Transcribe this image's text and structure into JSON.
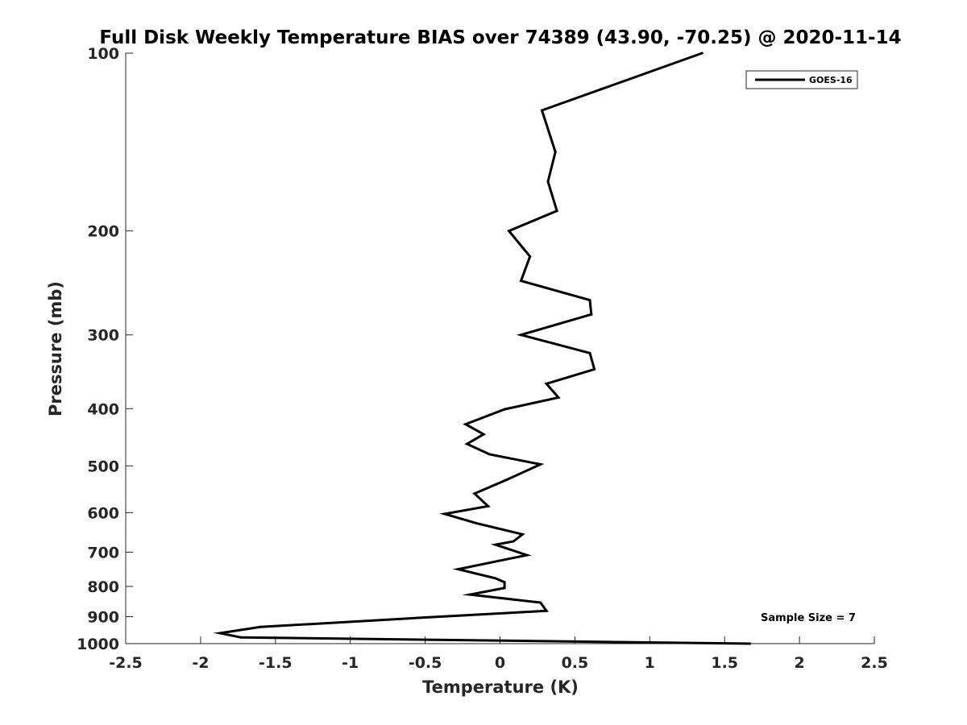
{
  "chart_data": {
    "type": "line",
    "title": "Full Disk Weekly Temperature BIAS over 74389 (43.90, -70.25) @ 2020-11-14",
    "xlabel": "Temperature (K)",
    "ylabel": "Pressure (mb)",
    "xlim": [
      -2.5,
      2.5
    ],
    "ylim": [
      100,
      1000
    ],
    "y_scale": "log",
    "y_reversed": true,
    "x_ticks": [
      "-2.5",
      "-2",
      "-1.5",
      "-1",
      "-0.5",
      "0",
      "0.5",
      "1",
      "1.5",
      "2",
      "2.5"
    ],
    "y_ticks": [
      "100",
      "200",
      "300",
      "400",
      "500",
      "600",
      "700",
      "800",
      "900",
      "1000"
    ],
    "grid": false,
    "legend_position": "top-right",
    "series": [
      {
        "name": "GOES-16",
        "color": "#000000",
        "points": [
          {
            "x": 1.35,
            "y": 100
          },
          {
            "x": 0.28,
            "y": 125
          },
          {
            "x": 0.37,
            "y": 147
          },
          {
            "x": 0.32,
            "y": 165
          },
          {
            "x": 0.38,
            "y": 185
          },
          {
            "x": 0.06,
            "y": 200
          },
          {
            "x": 0.2,
            "y": 221
          },
          {
            "x": 0.14,
            "y": 243
          },
          {
            "x": 0.6,
            "y": 262
          },
          {
            "x": 0.61,
            "y": 277
          },
          {
            "x": 0.14,
            "y": 300
          },
          {
            "x": 0.6,
            "y": 322
          },
          {
            "x": 0.63,
            "y": 343
          },
          {
            "x": 0.31,
            "y": 363
          },
          {
            "x": 0.39,
            "y": 383
          },
          {
            "x": 0.03,
            "y": 401
          },
          {
            "x": -0.23,
            "y": 425
          },
          {
            "x": -0.11,
            "y": 442
          },
          {
            "x": -0.22,
            "y": 459
          },
          {
            "x": -0.07,
            "y": 478
          },
          {
            "x": 0.27,
            "y": 497
          },
          {
            "x": 0.05,
            "y": 527
          },
          {
            "x": -0.17,
            "y": 557
          },
          {
            "x": -0.08,
            "y": 585
          },
          {
            "x": -0.37,
            "y": 603
          },
          {
            "x": -0.16,
            "y": 625
          },
          {
            "x": 0.15,
            "y": 653
          },
          {
            "x": 0.09,
            "y": 671
          },
          {
            "x": -0.03,
            "y": 680
          },
          {
            "x": 0.18,
            "y": 708
          },
          {
            "x": -0.28,
            "y": 748
          },
          {
            "x": -0.03,
            "y": 775
          },
          {
            "x": 0.03,
            "y": 787
          },
          {
            "x": 0.03,
            "y": 805
          },
          {
            "x": -0.2,
            "y": 826
          },
          {
            "x": 0.27,
            "y": 852
          },
          {
            "x": 0.31,
            "y": 880
          },
          {
            "x": -0.5,
            "y": 903
          },
          {
            "x": -1.6,
            "y": 937
          },
          {
            "x": -1.87,
            "y": 960
          },
          {
            "x": -1.73,
            "y": 976
          },
          {
            "x": 1.67,
            "y": 1000
          }
        ]
      }
    ],
    "annotations": [
      "Sample Size = 7"
    ]
  }
}
